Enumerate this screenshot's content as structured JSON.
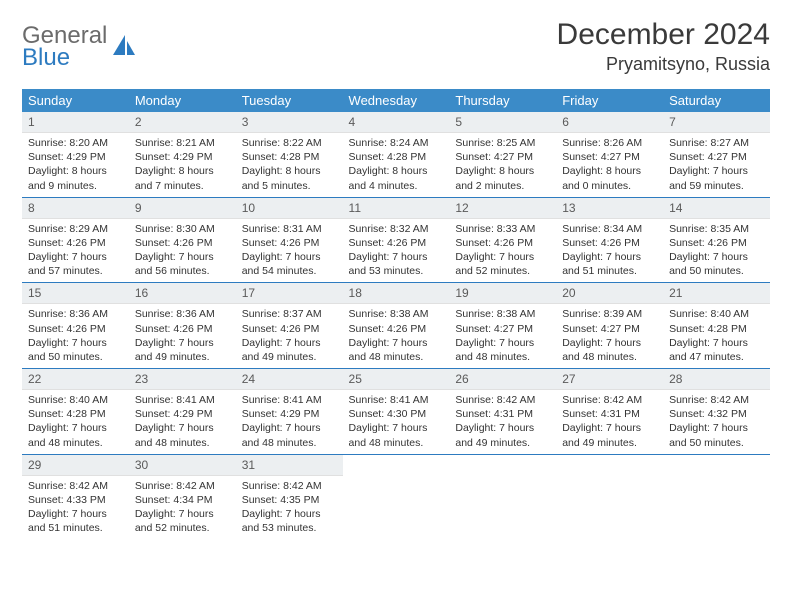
{
  "logo": {
    "general": "General",
    "blue": "Blue"
  },
  "title": "December 2024",
  "location": "Pryamitsyno, Russia",
  "colors": {
    "header_bg": "#3b8bc8",
    "header_text": "#ffffff",
    "daynum_bg": "#eceff1",
    "border": "#2d7bc0",
    "logo_gray": "#6b6b6b",
    "logo_blue": "#2d7bc0"
  },
  "day_headers": [
    "Sunday",
    "Monday",
    "Tuesday",
    "Wednesday",
    "Thursday",
    "Friday",
    "Saturday"
  ],
  "weeks": [
    [
      {
        "n": "1",
        "sr": "Sunrise: 8:20 AM",
        "ss": "Sunset: 4:29 PM",
        "dl": "Daylight: 8 hours and 9 minutes."
      },
      {
        "n": "2",
        "sr": "Sunrise: 8:21 AM",
        "ss": "Sunset: 4:29 PM",
        "dl": "Daylight: 8 hours and 7 minutes."
      },
      {
        "n": "3",
        "sr": "Sunrise: 8:22 AM",
        "ss": "Sunset: 4:28 PM",
        "dl": "Daylight: 8 hours and 5 minutes."
      },
      {
        "n": "4",
        "sr": "Sunrise: 8:24 AM",
        "ss": "Sunset: 4:28 PM",
        "dl": "Daylight: 8 hours and 4 minutes."
      },
      {
        "n": "5",
        "sr": "Sunrise: 8:25 AM",
        "ss": "Sunset: 4:27 PM",
        "dl": "Daylight: 8 hours and 2 minutes."
      },
      {
        "n": "6",
        "sr": "Sunrise: 8:26 AM",
        "ss": "Sunset: 4:27 PM",
        "dl": "Daylight: 8 hours and 0 minutes."
      },
      {
        "n": "7",
        "sr": "Sunrise: 8:27 AM",
        "ss": "Sunset: 4:27 PM",
        "dl": "Daylight: 7 hours and 59 minutes."
      }
    ],
    [
      {
        "n": "8",
        "sr": "Sunrise: 8:29 AM",
        "ss": "Sunset: 4:26 PM",
        "dl": "Daylight: 7 hours and 57 minutes."
      },
      {
        "n": "9",
        "sr": "Sunrise: 8:30 AM",
        "ss": "Sunset: 4:26 PM",
        "dl": "Daylight: 7 hours and 56 minutes."
      },
      {
        "n": "10",
        "sr": "Sunrise: 8:31 AM",
        "ss": "Sunset: 4:26 PM",
        "dl": "Daylight: 7 hours and 54 minutes."
      },
      {
        "n": "11",
        "sr": "Sunrise: 8:32 AM",
        "ss": "Sunset: 4:26 PM",
        "dl": "Daylight: 7 hours and 53 minutes."
      },
      {
        "n": "12",
        "sr": "Sunrise: 8:33 AM",
        "ss": "Sunset: 4:26 PM",
        "dl": "Daylight: 7 hours and 52 minutes."
      },
      {
        "n": "13",
        "sr": "Sunrise: 8:34 AM",
        "ss": "Sunset: 4:26 PM",
        "dl": "Daylight: 7 hours and 51 minutes."
      },
      {
        "n": "14",
        "sr": "Sunrise: 8:35 AM",
        "ss": "Sunset: 4:26 PM",
        "dl": "Daylight: 7 hours and 50 minutes."
      }
    ],
    [
      {
        "n": "15",
        "sr": "Sunrise: 8:36 AM",
        "ss": "Sunset: 4:26 PM",
        "dl": "Daylight: 7 hours and 50 minutes."
      },
      {
        "n": "16",
        "sr": "Sunrise: 8:36 AM",
        "ss": "Sunset: 4:26 PM",
        "dl": "Daylight: 7 hours and 49 minutes."
      },
      {
        "n": "17",
        "sr": "Sunrise: 8:37 AM",
        "ss": "Sunset: 4:26 PM",
        "dl": "Daylight: 7 hours and 49 minutes."
      },
      {
        "n": "18",
        "sr": "Sunrise: 8:38 AM",
        "ss": "Sunset: 4:26 PM",
        "dl": "Daylight: 7 hours and 48 minutes."
      },
      {
        "n": "19",
        "sr": "Sunrise: 8:38 AM",
        "ss": "Sunset: 4:27 PM",
        "dl": "Daylight: 7 hours and 48 minutes."
      },
      {
        "n": "20",
        "sr": "Sunrise: 8:39 AM",
        "ss": "Sunset: 4:27 PM",
        "dl": "Daylight: 7 hours and 48 minutes."
      },
      {
        "n": "21",
        "sr": "Sunrise: 8:40 AM",
        "ss": "Sunset: 4:28 PM",
        "dl": "Daylight: 7 hours and 47 minutes."
      }
    ],
    [
      {
        "n": "22",
        "sr": "Sunrise: 8:40 AM",
        "ss": "Sunset: 4:28 PM",
        "dl": "Daylight: 7 hours and 48 minutes."
      },
      {
        "n": "23",
        "sr": "Sunrise: 8:41 AM",
        "ss": "Sunset: 4:29 PM",
        "dl": "Daylight: 7 hours and 48 minutes."
      },
      {
        "n": "24",
        "sr": "Sunrise: 8:41 AM",
        "ss": "Sunset: 4:29 PM",
        "dl": "Daylight: 7 hours and 48 minutes."
      },
      {
        "n": "25",
        "sr": "Sunrise: 8:41 AM",
        "ss": "Sunset: 4:30 PM",
        "dl": "Daylight: 7 hours and 48 minutes."
      },
      {
        "n": "26",
        "sr": "Sunrise: 8:42 AM",
        "ss": "Sunset: 4:31 PM",
        "dl": "Daylight: 7 hours and 49 minutes."
      },
      {
        "n": "27",
        "sr": "Sunrise: 8:42 AM",
        "ss": "Sunset: 4:31 PM",
        "dl": "Daylight: 7 hours and 49 minutes."
      },
      {
        "n": "28",
        "sr": "Sunrise: 8:42 AM",
        "ss": "Sunset: 4:32 PM",
        "dl": "Daylight: 7 hours and 50 minutes."
      }
    ],
    [
      {
        "n": "29",
        "sr": "Sunrise: 8:42 AM",
        "ss": "Sunset: 4:33 PM",
        "dl": "Daylight: 7 hours and 51 minutes."
      },
      {
        "n": "30",
        "sr": "Sunrise: 8:42 AM",
        "ss": "Sunset: 4:34 PM",
        "dl": "Daylight: 7 hours and 52 minutes."
      },
      {
        "n": "31",
        "sr": "Sunrise: 8:42 AM",
        "ss": "Sunset: 4:35 PM",
        "dl": "Daylight: 7 hours and 53 minutes."
      },
      {
        "empty": true
      },
      {
        "empty": true
      },
      {
        "empty": true
      },
      {
        "empty": true
      }
    ]
  ]
}
